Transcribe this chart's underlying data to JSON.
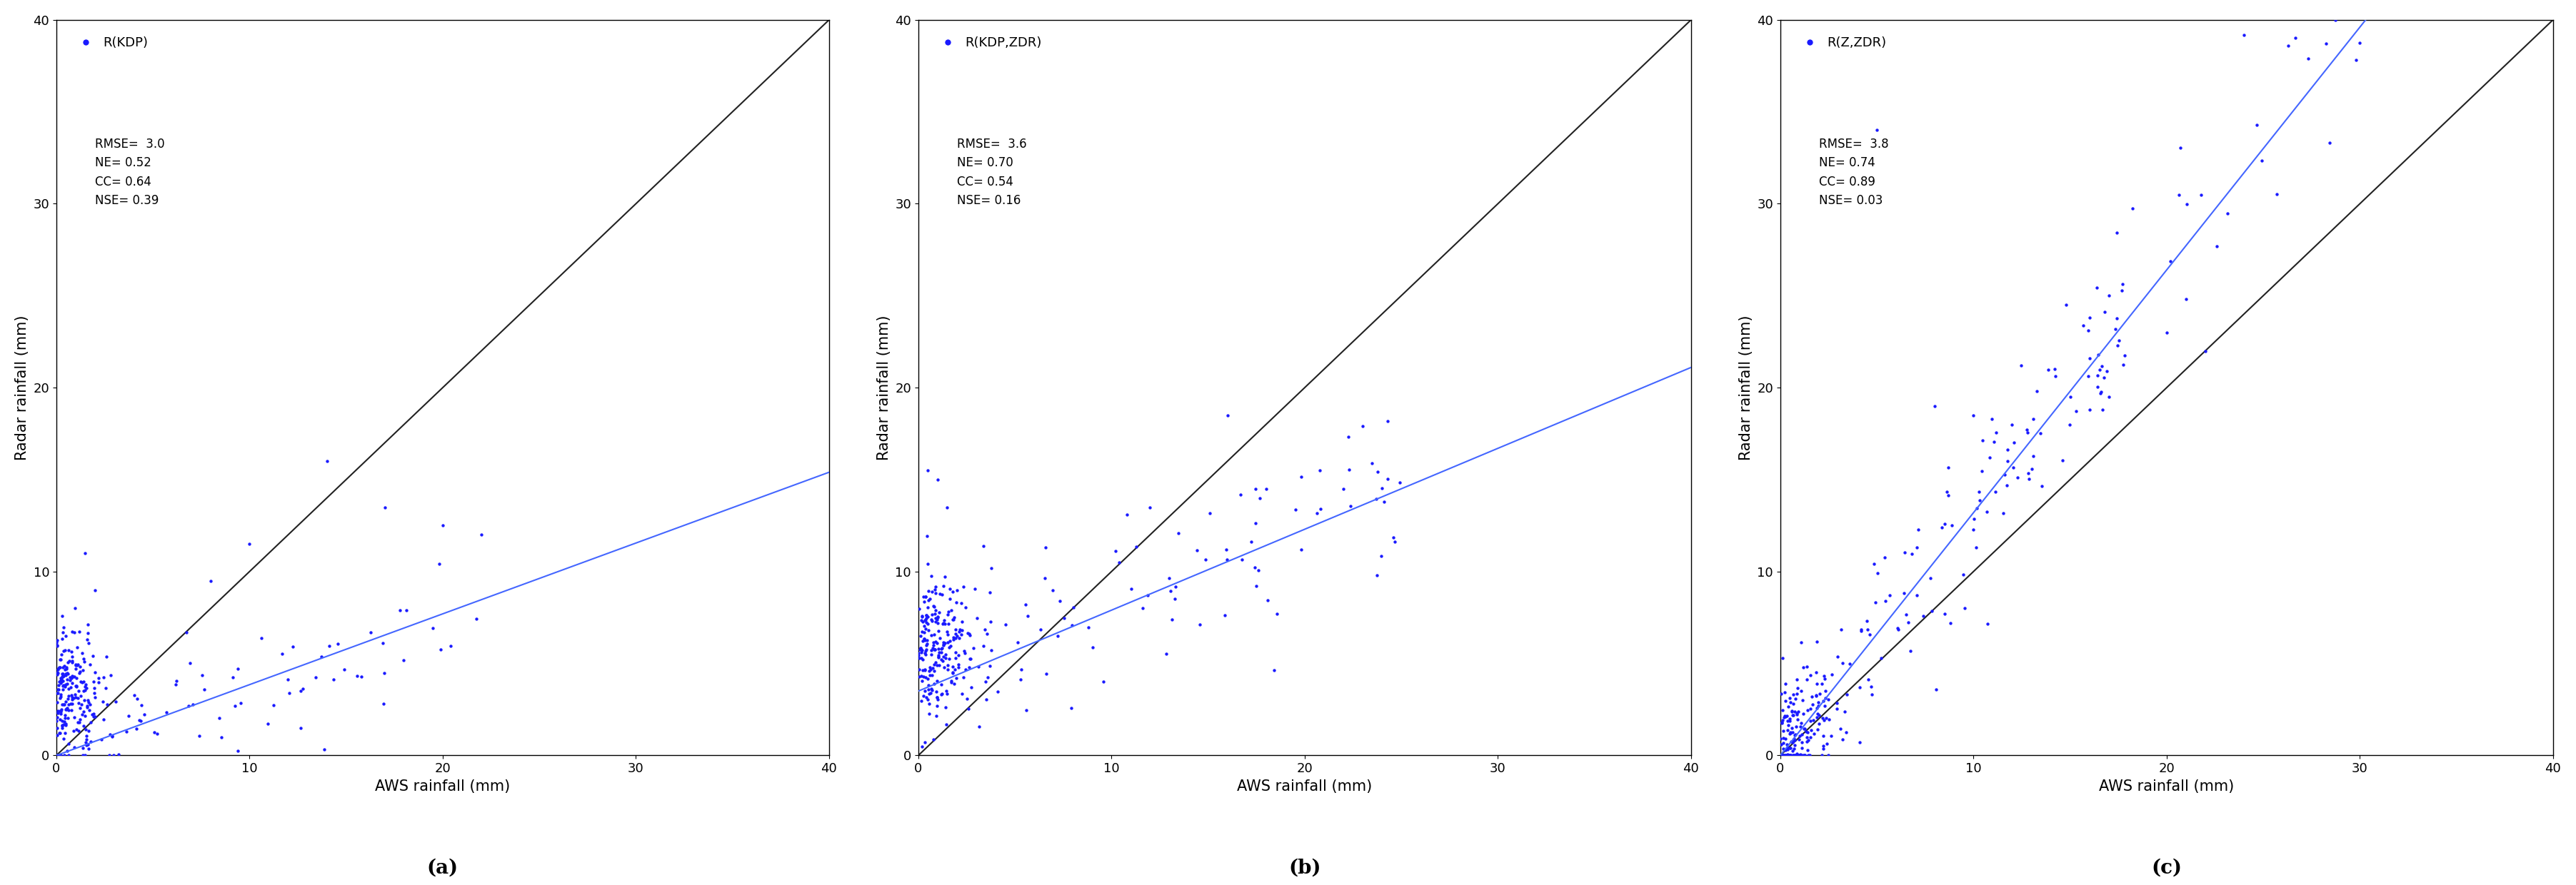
{
  "panels": [
    {
      "label": "(a)",
      "legend_label": "R(KDP)",
      "rmse": "3.0",
      "ne": "0.52",
      "cc": "0.64",
      "nse": "0.39",
      "reg_slope": 0.385,
      "reg_intercept": 0.0,
      "xlim": [
        0,
        40
      ],
      "ylim": [
        0,
        40
      ],
      "xticks": [
        0,
        10,
        20,
        30,
        40
      ],
      "yticks": [
        0,
        10,
        20,
        30,
        40
      ]
    },
    {
      "label": "(b)",
      "legend_label": "R(KDP,ZDR)",
      "rmse": "3.6",
      "ne": "0.70",
      "cc": "0.54",
      "nse": "0.16",
      "reg_slope": 0.44,
      "reg_intercept": 3.5,
      "xlim": [
        0,
        40
      ],
      "ylim": [
        0,
        40
      ],
      "xticks": [
        0,
        10,
        20,
        30,
        40
      ],
      "yticks": [
        0,
        10,
        20,
        30,
        40
      ]
    },
    {
      "label": "(c)",
      "legend_label": "R(Z,ZDR)",
      "rmse": "3.8",
      "ne": "0.74",
      "cc": "0.89",
      "nse": "0.03",
      "reg_slope": 1.32,
      "reg_intercept": 0.0,
      "xlim": [
        0,
        40
      ],
      "ylim": [
        0,
        40
      ],
      "xticks": [
        0,
        10,
        20,
        30,
        40
      ],
      "yticks": [
        0,
        10,
        20,
        30,
        40
      ]
    }
  ],
  "dot_color": "#1a1aff",
  "dot_size": 10,
  "reg_line_color": "#4466ff",
  "one_one_color": "#222222",
  "xlabel": "AWS rainfall (mm)",
  "ylabel": "Radar rainfall (mm)",
  "label_fontsize": 15,
  "tick_fontsize": 13,
  "legend_fontsize": 13,
  "stats_fontsize": 12,
  "panel_label_fontsize": 20,
  "background_color": "#ffffff"
}
